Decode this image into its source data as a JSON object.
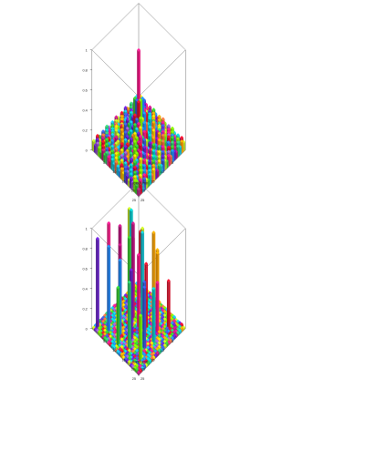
{
  "page": {
    "background": "#ffffff"
  },
  "palette": [
    "#e8112d",
    "#ff1a8c",
    "#c71585",
    "#9b59d0",
    "#6a1fd1",
    "#3b5bdb",
    "#1e90ff",
    "#12c3e0",
    "#00ced1",
    "#2ecc71",
    "#32cd32",
    "#7cfc00",
    "#c0e820",
    "#ffd700",
    "#ffa500",
    "#ff6f3c"
  ],
  "chart_data": [
    {
      "type": "bar3d",
      "title": "",
      "xlabel": "column",
      "ylabel": "row",
      "zlabel": "",
      "x_ticks": [
        "5",
        "10",
        "15",
        "20",
        "25"
      ],
      "y_ticks": [
        "5",
        "10",
        "15",
        "20",
        "25"
      ],
      "z_ticks": [
        "0",
        "0.2",
        "0.4",
        "0.6",
        "0.8",
        "1"
      ],
      "zlim": [
        0,
        1
      ],
      "grid_size": 25,
      "pattern": "pyramid",
      "peak": {
        "column": 13,
        "row": 13,
        "value": 1.0
      },
      "side_colors": {
        "front": "#32cd32",
        "left": "#e8112d",
        "right": "#e8112d"
      }
    },
    {
      "type": "bar3d",
      "title": "",
      "xlabel": "column",
      "ylabel": "row",
      "zlabel": "",
      "x_ticks": [
        "5",
        "10",
        "15",
        "20",
        "25"
      ],
      "y_ticks": [
        "5",
        "10",
        "15",
        "20",
        "25"
      ],
      "z_ticks": [
        "0",
        "0.2",
        "0.4",
        "0.6",
        "0.8",
        "1"
      ],
      "zlim": [
        0,
        1
      ],
      "grid_size": 25,
      "pattern": "sparse",
      "tall_bars": [
        {
          "column": 3,
          "row": 4,
          "value": 0.62
        },
        {
          "column": 2,
          "row": 10,
          "value": 0.7
        },
        {
          "column": 5,
          "row": 2,
          "value": 0.55
        },
        {
          "column": 6,
          "row": 8,
          "value": 0.78
        },
        {
          "column": 8,
          "row": 3,
          "value": 0.92
        },
        {
          "column": 9,
          "row": 11,
          "value": 0.85
        },
        {
          "column": 10,
          "row": 6,
          "value": 1.0
        },
        {
          "column": 11,
          "row": 15,
          "value": 0.65
        },
        {
          "column": 12,
          "row": 9,
          "value": 0.96
        },
        {
          "column": 13,
          "row": 13,
          "value": 0.74
        },
        {
          "column": 14,
          "row": 4,
          "value": 0.88
        },
        {
          "column": 15,
          "row": 18,
          "value": 0.6
        },
        {
          "column": 16,
          "row": 11,
          "value": 0.93
        },
        {
          "column": 17,
          "row": 7,
          "value": 0.8
        },
        {
          "column": 18,
          "row": 14,
          "value": 0.7
        },
        {
          "column": 19,
          "row": 3,
          "value": 0.98
        },
        {
          "column": 20,
          "row": 10,
          "value": 0.76
        },
        {
          "column": 21,
          "row": 16,
          "value": 0.67
        },
        {
          "column": 22,
          "row": 6,
          "value": 0.86
        },
        {
          "column": 23,
          "row": 12,
          "value": 0.58
        },
        {
          "column": 24,
          "row": 2,
          "value": 0.9
        },
        {
          "column": 7,
          "row": 17,
          "value": 0.72
        },
        {
          "column": 4,
          "row": 14,
          "value": 0.64
        },
        {
          "column": 13,
          "row": 21,
          "value": 0.55
        },
        {
          "column": 17,
          "row": 20,
          "value": 0.62
        },
        {
          "column": 9,
          "row": 19,
          "value": 0.5
        },
        {
          "column": 21,
          "row": 22,
          "value": 0.45
        },
        {
          "column": 5,
          "row": 21,
          "value": 0.48
        }
      ]
    }
  ]
}
